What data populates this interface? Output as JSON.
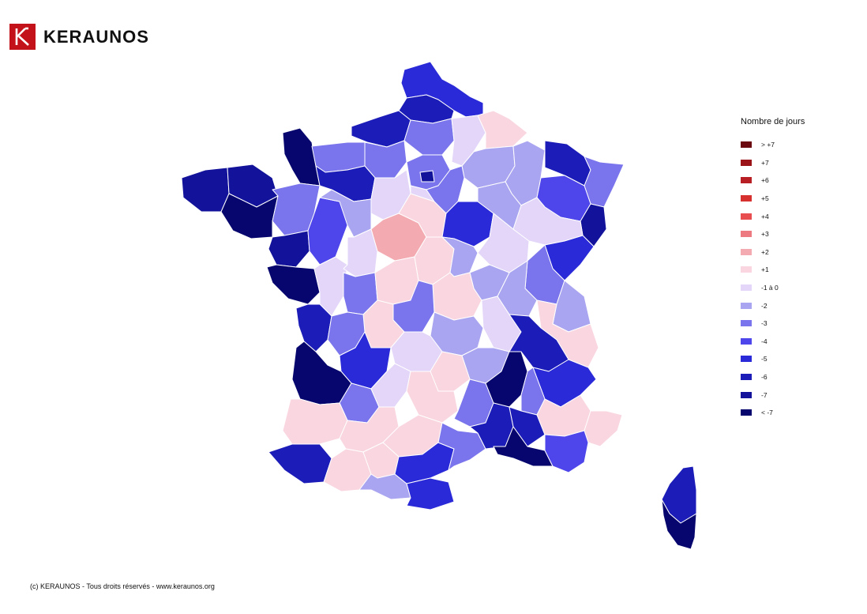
{
  "brand": {
    "name": "KERAUNOS",
    "logo_color": "#c4121a"
  },
  "legend": {
    "title": "Nombre de jours",
    "items": [
      {
        "label": "> +7",
        "color": "#6b0a10"
      },
      {
        "label": "+7",
        "color": "#9b1418"
      },
      {
        "label": "+6",
        "color": "#b81f24"
      },
      {
        "label": "+5",
        "color": "#d6302f"
      },
      {
        "label": "+4",
        "color": "#e84d4f"
      },
      {
        "label": "+3",
        "color": "#ec7a80"
      },
      {
        "label": "+2",
        "color": "#f3aab1"
      },
      {
        "label": "+1",
        "color": "#f9d6e0"
      },
      {
        "label": "-1 à 0",
        "color": "#e3d6f9"
      },
      {
        "label": "-2",
        "color": "#aaa5f0"
      },
      {
        "label": "-3",
        "color": "#7a75ec"
      },
      {
        "label": "-4",
        "color": "#4e46ea"
      },
      {
        "label": "-5",
        "color": "#2a2ad8"
      },
      {
        "label": "-6",
        "color": "#1c1cb8"
      },
      {
        "label": "-7",
        "color": "#12129a"
      },
      {
        "label": "< -7",
        "color": "#06066e"
      }
    ]
  },
  "copyright": "(c) KERAUNOS - Tous droits réservés - www.keraunos.org"
}
